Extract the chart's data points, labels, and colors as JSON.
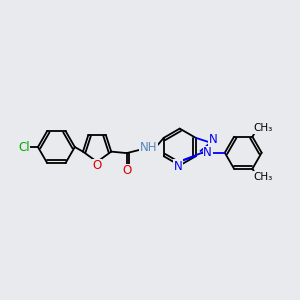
{
  "background_color": "#e8eaed",
  "bond_color": "#000000",
  "cl_color": "#00aa00",
  "o_color": "#dd0000",
  "n_color": "#0000ee",
  "nh_color": "#5588bb",
  "font_size": 8.5,
  "bond_width": 1.3,
  "figsize": [
    3.0,
    3.0
  ],
  "dpi": 100,
  "xlim": [
    0,
    10
  ],
  "ylim": [
    0,
    10
  ]
}
